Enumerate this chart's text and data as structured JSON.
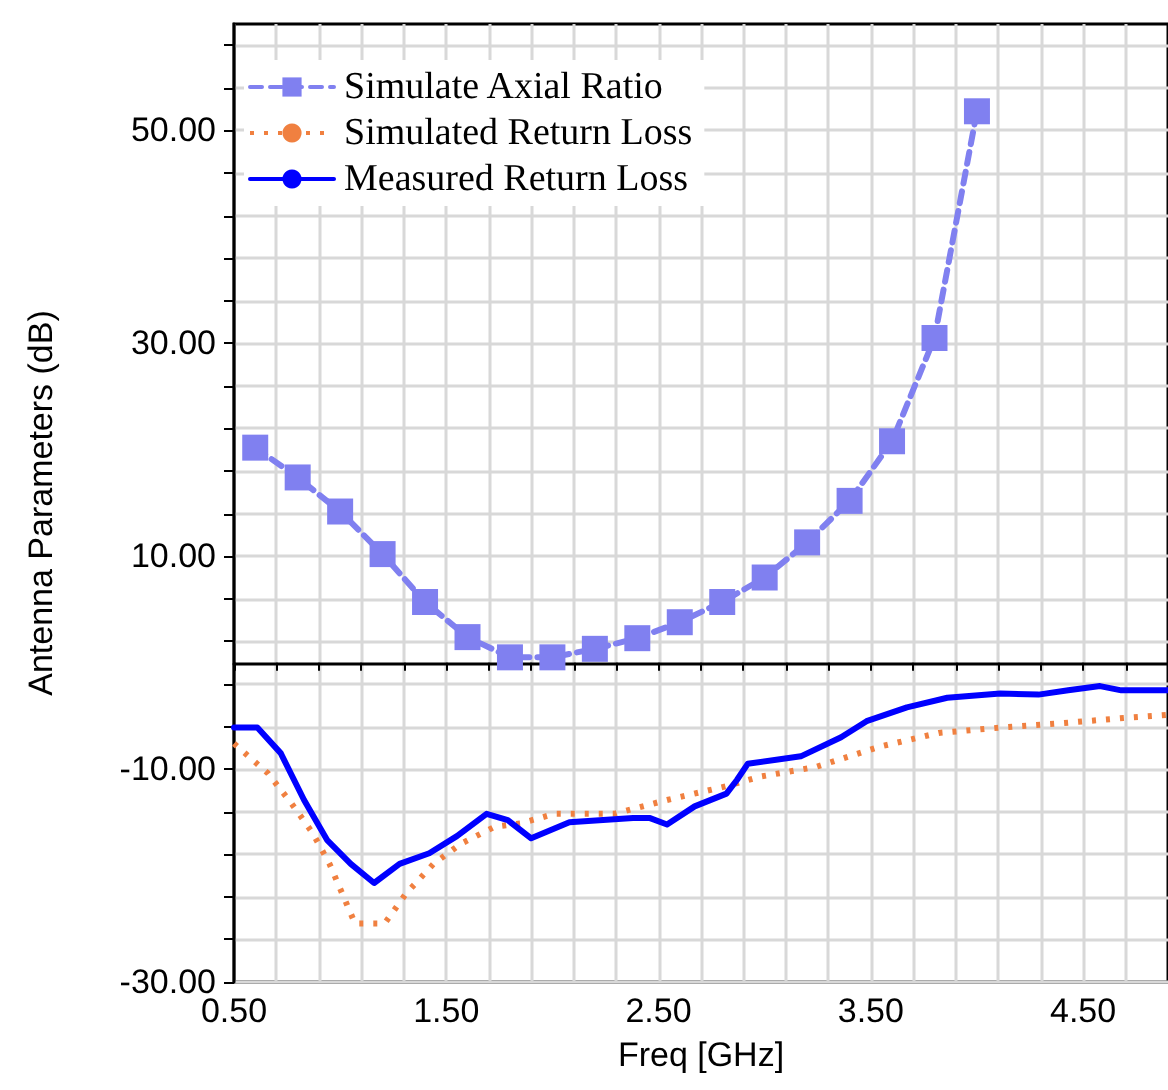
{
  "chart_data": {
    "type": "line",
    "xlabel": "Freq [GHz]",
    "ylabel": "Antenna Parameters (dB)",
    "xlim": [
      0.5,
      4.9
    ],
    "ylim": [
      -30,
      60
    ],
    "xticks": [
      {
        "value": 0.5,
        "label": "0.50"
      },
      {
        "value": 0.7,
        "label": null
      },
      {
        "value": 0.9,
        "label": null
      },
      {
        "value": 1.1,
        "label": null
      },
      {
        "value": 1.3,
        "label": null
      },
      {
        "value": 1.5,
        "label": "1.50"
      },
      {
        "value": 1.7,
        "label": null
      },
      {
        "value": 1.9,
        "label": null
      },
      {
        "value": 2.1,
        "label": null
      },
      {
        "value": 2.3,
        "label": null
      },
      {
        "value": 2.5,
        "label": "2.50"
      },
      {
        "value": 2.7,
        "label": null
      },
      {
        "value": 2.9,
        "label": null
      },
      {
        "value": 3.1,
        "label": null
      },
      {
        "value": 3.3,
        "label": null
      },
      {
        "value": 3.5,
        "label": "3.50"
      },
      {
        "value": 3.7,
        "label": null
      },
      {
        "value": 3.9,
        "label": null
      },
      {
        "value": 4.1,
        "label": null
      },
      {
        "value": 4.3,
        "label": null
      },
      {
        "value": 4.5,
        "label": "4.50"
      },
      {
        "value": 4.7,
        "label": null
      }
    ],
    "yticks": [
      {
        "value": -30,
        "label": "-30.00"
      },
      {
        "value": -26,
        "label": null
      },
      {
        "value": -22,
        "label": null
      },
      {
        "value": -18,
        "label": null
      },
      {
        "value": -14,
        "label": null
      },
      {
        "value": -10,
        "label": "-10.00"
      },
      {
        "value": -6,
        "label": null
      },
      {
        "value": -2,
        "label": null
      },
      {
        "value": 2,
        "label": null
      },
      {
        "value": 6,
        "label": null
      },
      {
        "value": 10,
        "label": "10.00"
      },
      {
        "value": 14,
        "label": null
      },
      {
        "value": 18,
        "label": null
      },
      {
        "value": 22,
        "label": null
      },
      {
        "value": 26,
        "label": null
      },
      {
        "value": 30,
        "label": "30.00"
      },
      {
        "value": 34,
        "label": null
      },
      {
        "value": 38,
        "label": null
      },
      {
        "value": 42,
        "label": null
      },
      {
        "value": 46,
        "label": null
      },
      {
        "value": 50,
        "label": "50.00"
      },
      {
        "value": 54,
        "label": null
      },
      {
        "value": 58,
        "label": null
      }
    ],
    "grid": true,
    "legend": "top left",
    "series": [
      {
        "name": "Simulate Axial Ratio",
        "color": "#8080f0",
        "marker": "square",
        "line_style": "dashed",
        "x": [
          0.6,
          0.8,
          1.0,
          1.2,
          1.4,
          1.6,
          1.8,
          2.0,
          2.2,
          2.4,
          2.6,
          2.8,
          3.0,
          3.2,
          3.4,
          3.6,
          3.8,
          4.0
        ],
        "values": [
          20.2,
          17.4,
          14.2,
          10.2,
          5.7,
          2.4,
          0.5,
          0.5,
          1.3,
          2.3,
          3.8,
          5.7,
          8.0,
          11.3,
          15.2,
          20.8,
          30.5,
          51.8
        ]
      },
      {
        "name": "Simulated Return Loss",
        "color": "#f08040",
        "marker": "none",
        "line_style": "dotted",
        "x": [
          0.5,
          0.66,
          0.77,
          0.87,
          0.95,
          1.01,
          1.07,
          1.21,
          1.31,
          1.44,
          1.57,
          1.73,
          1.85,
          2.01,
          2.29,
          2.54,
          2.82,
          2.98,
          3.24,
          3.54,
          3.82,
          4.11,
          4.39,
          4.69,
          4.9
        ],
        "values": [
          -7.6,
          -10.4,
          -13.2,
          -16.0,
          -18.9,
          -21.7,
          -24.5,
          -24.5,
          -21.7,
          -18.9,
          -17.0,
          -15.4,
          -15.1,
          -14.2,
          -14.2,
          -12.9,
          -11.6,
          -10.7,
          -9.8,
          -7.9,
          -6.6,
          -6.1,
          -5.7,
          -5.2,
          -4.9
        ]
      },
      {
        "name": "Measured Return Loss",
        "color": "#0000ff",
        "marker": "none",
        "line_style": "solid",
        "x": [
          0.5,
          0.61,
          0.72,
          0.83,
          0.94,
          1.05,
          1.16,
          1.28,
          1.42,
          1.55,
          1.69,
          1.79,
          1.9,
          2.08,
          2.38,
          2.46,
          2.54,
          2.67,
          2.82,
          2.87,
          2.92,
          3.17,
          3.36,
          3.48,
          3.67,
          3.86,
          4.11,
          4.29,
          4.43,
          4.58,
          4.68,
          4.9
        ],
        "values": [
          -6.1,
          -6.1,
          -8.5,
          -12.9,
          -16.7,
          -18.9,
          -20.7,
          -18.9,
          -17.9,
          -16.3,
          -14.2,
          -14.8,
          -16.5,
          -15.0,
          -14.6,
          -14.6,
          -15.2,
          -13.5,
          -12.3,
          -11.0,
          -9.5,
          -8.8,
          -7.0,
          -5.5,
          -4.2,
          -3.3,
          -2.9,
          -3.0,
          -2.6,
          -2.2,
          -2.6,
          -2.6
        ]
      }
    ]
  }
}
